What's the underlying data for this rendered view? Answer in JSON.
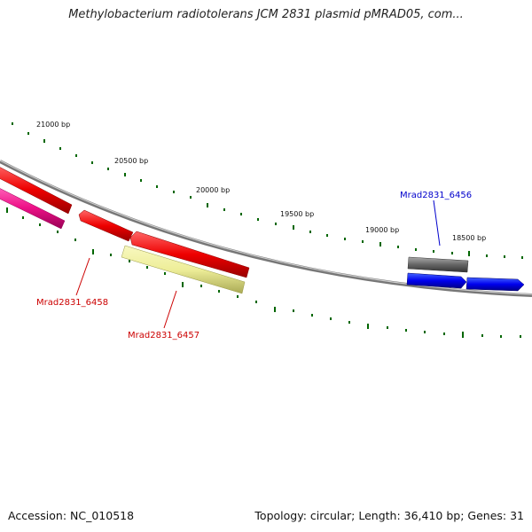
{
  "title": "Methylobacterium radiotolerans JCM 2831 plasmid pMRAD05, com...",
  "footer": {
    "accession": "Accession: NC_010518",
    "summary": "Topology: circular; Length: 36,410 bp; Genes: 31"
  },
  "scale_ticks": [
    "21000 bp",
    "20500 bp",
    "20000 bp",
    "19500 bp",
    "19000 bp",
    "18500 bp"
  ],
  "genes": [
    {
      "label": "Mrad2831_6456",
      "color": "#0000cc"
    },
    {
      "label": "Mrad2831_6457",
      "color": "#cc0000"
    },
    {
      "label": "Mrad2831_6458",
      "color": "#cc0000"
    }
  ],
  "colors": {
    "backbone": "#888888",
    "forward_gene": "#0000ee",
    "reverse_gene": "#ee0000",
    "pink_feature": "#ee2288",
    "yellow_feature": "#eeee99",
    "grey_feature": "#666666",
    "tick": "#006600"
  }
}
